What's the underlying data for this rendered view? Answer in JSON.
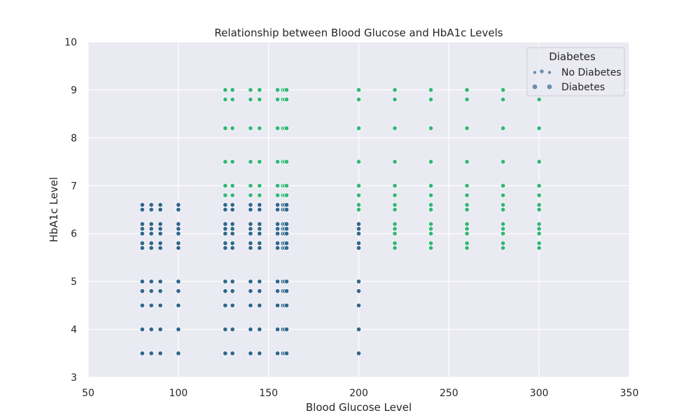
{
  "chart_data": {
    "type": "scatter",
    "title": "Relationship between Blood Glucose and HbA1c Levels",
    "xlabel": "Blood Glucose Level",
    "ylabel": "HbA1c Level",
    "xlim": [
      50,
      350
    ],
    "ylim": [
      3,
      10
    ],
    "xticks": [
      50,
      100,
      150,
      200,
      250,
      300,
      350
    ],
    "yticks": [
      3,
      4,
      5,
      6,
      7,
      8,
      9,
      10
    ],
    "grid": true,
    "legend": {
      "title": "Diabetes",
      "placement": "top-right",
      "entries": [
        {
          "label": "No Diabetes",
          "color": "#31688e"
        },
        {
          "label": "Diabetes",
          "color": "#35b779"
        }
      ]
    },
    "series": [
      {
        "name": "No Diabetes",
        "color": "#31688e",
        "points": [
          [
            80,
            3.5
          ],
          [
            80,
            4.0
          ],
          [
            80,
            4.5
          ],
          [
            80,
            4.8
          ],
          [
            80,
            5.0
          ],
          [
            80,
            5.7
          ],
          [
            80,
            5.8
          ],
          [
            80,
            6.0
          ],
          [
            80,
            6.1
          ],
          [
            80,
            6.2
          ],
          [
            80,
            6.5
          ],
          [
            80,
            6.6
          ],
          [
            85,
            3.5
          ],
          [
            85,
            4.0
          ],
          [
            85,
            4.5
          ],
          [
            85,
            4.8
          ],
          [
            85,
            5.0
          ],
          [
            85,
            5.7
          ],
          [
            85,
            5.8
          ],
          [
            85,
            6.0
          ],
          [
            85,
            6.1
          ],
          [
            85,
            6.2
          ],
          [
            85,
            6.5
          ],
          [
            85,
            6.6
          ],
          [
            90,
            3.5
          ],
          [
            90,
            4.0
          ],
          [
            90,
            4.5
          ],
          [
            90,
            4.8
          ],
          [
            90,
            5.0
          ],
          [
            90,
            5.7
          ],
          [
            90,
            5.8
          ],
          [
            90,
            6.0
          ],
          [
            90,
            6.1
          ],
          [
            90,
            6.2
          ],
          [
            90,
            6.5
          ],
          [
            90,
            6.6
          ],
          [
            100,
            3.5
          ],
          [
            100,
            4.0
          ],
          [
            100,
            4.5
          ],
          [
            100,
            4.8
          ],
          [
            100,
            5.0
          ],
          [
            100,
            5.7
          ],
          [
            100,
            5.8
          ],
          [
            100,
            6.0
          ],
          [
            100,
            6.1
          ],
          [
            100,
            6.2
          ],
          [
            100,
            6.5
          ],
          [
            100,
            6.6
          ],
          [
            126,
            3.5
          ],
          [
            126,
            4.0
          ],
          [
            126,
            4.5
          ],
          [
            126,
            4.8
          ],
          [
            126,
            5.0
          ],
          [
            126,
            5.7
          ],
          [
            126,
            5.8
          ],
          [
            126,
            6.0
          ],
          [
            126,
            6.1
          ],
          [
            126,
            6.2
          ],
          [
            126,
            6.5
          ],
          [
            126,
            6.6
          ],
          [
            130,
            3.5
          ],
          [
            130,
            4.0
          ],
          [
            130,
            4.5
          ],
          [
            130,
            4.8
          ],
          [
            130,
            5.0
          ],
          [
            130,
            5.7
          ],
          [
            130,
            5.8
          ],
          [
            130,
            6.0
          ],
          [
            130,
            6.1
          ],
          [
            130,
            6.2
          ],
          [
            130,
            6.5
          ],
          [
            130,
            6.6
          ],
          [
            140,
            3.5
          ],
          [
            140,
            4.0
          ],
          [
            140,
            4.5
          ],
          [
            140,
            4.8
          ],
          [
            140,
            5.0
          ],
          [
            140,
            5.7
          ],
          [
            140,
            5.8
          ],
          [
            140,
            6.0
          ],
          [
            140,
            6.1
          ],
          [
            140,
            6.2
          ],
          [
            140,
            6.5
          ],
          [
            140,
            6.6
          ],
          [
            145,
            3.5
          ],
          [
            145,
            4.0
          ],
          [
            145,
            4.5
          ],
          [
            145,
            4.8
          ],
          [
            145,
            5.0
          ],
          [
            145,
            5.7
          ],
          [
            145,
            5.8
          ],
          [
            145,
            6.0
          ],
          [
            145,
            6.1
          ],
          [
            145,
            6.2
          ],
          [
            145,
            6.5
          ],
          [
            145,
            6.6
          ],
          [
            155,
            3.5
          ],
          [
            155,
            4.0
          ],
          [
            155,
            4.5
          ],
          [
            155,
            4.8
          ],
          [
            155,
            5.0
          ],
          [
            155,
            5.7
          ],
          [
            155,
            5.8
          ],
          [
            155,
            6.0
          ],
          [
            155,
            6.1
          ],
          [
            155,
            6.2
          ],
          [
            155,
            6.5
          ],
          [
            155,
            6.6
          ],
          [
            158,
            3.5
          ],
          [
            158,
            4.0
          ],
          [
            158,
            4.5
          ],
          [
            158,
            4.8
          ],
          [
            158,
            5.0
          ],
          [
            158,
            5.7
          ],
          [
            158,
            5.8
          ],
          [
            158,
            6.0
          ],
          [
            158,
            6.1
          ],
          [
            158,
            6.2
          ],
          [
            158,
            6.5
          ],
          [
            158,
            6.6
          ],
          [
            159,
            3.5
          ],
          [
            159,
            4.0
          ],
          [
            159,
            4.5
          ],
          [
            159,
            4.8
          ],
          [
            159,
            5.0
          ],
          [
            159,
            5.7
          ],
          [
            159,
            5.8
          ],
          [
            159,
            6.0
          ],
          [
            159,
            6.1
          ],
          [
            159,
            6.2
          ],
          [
            159,
            6.5
          ],
          [
            159,
            6.6
          ],
          [
            160,
            3.5
          ],
          [
            160,
            4.0
          ],
          [
            160,
            4.5
          ],
          [
            160,
            4.8
          ],
          [
            160,
            5.0
          ],
          [
            160,
            5.7
          ],
          [
            160,
            5.8
          ],
          [
            160,
            6.0
          ],
          [
            160,
            6.1
          ],
          [
            160,
            6.2
          ],
          [
            160,
            6.5
          ],
          [
            160,
            6.6
          ],
          [
            200,
            3.5
          ],
          [
            200,
            4.0
          ],
          [
            200,
            4.5
          ],
          [
            200,
            4.8
          ],
          [
            200,
            5.0
          ],
          [
            200,
            5.7
          ],
          [
            200,
            5.8
          ],
          [
            200,
            6.0
          ],
          [
            200,
            6.1
          ],
          [
            200,
            6.2
          ],
          [
            200,
            6.5
          ],
          [
            200,
            6.6
          ]
        ]
      },
      {
        "name": "Diabetes",
        "color": "#35b779",
        "points": [
          [
            126,
            6.8
          ],
          [
            126,
            7.0
          ],
          [
            126,
            7.5
          ],
          [
            126,
            8.2
          ],
          [
            126,
            8.8
          ],
          [
            126,
            9.0
          ],
          [
            130,
            6.8
          ],
          [
            130,
            7.0
          ],
          [
            130,
            7.5
          ],
          [
            130,
            8.2
          ],
          [
            130,
            8.8
          ],
          [
            130,
            9.0
          ],
          [
            140,
            6.8
          ],
          [
            140,
            7.0
          ],
          [
            140,
            7.5
          ],
          [
            140,
            8.2
          ],
          [
            140,
            8.8
          ],
          [
            140,
            9.0
          ],
          [
            145,
            6.8
          ],
          [
            145,
            7.0
          ],
          [
            145,
            7.5
          ],
          [
            145,
            8.2
          ],
          [
            145,
            8.8
          ],
          [
            145,
            9.0
          ],
          [
            155,
            6.8
          ],
          [
            155,
            7.0
          ],
          [
            155,
            7.5
          ],
          [
            155,
            8.2
          ],
          [
            155,
            8.8
          ],
          [
            155,
            9.0
          ],
          [
            158,
            6.8
          ],
          [
            158,
            7.0
          ],
          [
            158,
            7.5
          ],
          [
            158,
            8.2
          ],
          [
            158,
            8.8
          ],
          [
            158,
            9.0
          ],
          [
            159,
            6.8
          ],
          [
            159,
            7.0
          ],
          [
            159,
            7.5
          ],
          [
            159,
            8.2
          ],
          [
            159,
            8.8
          ],
          [
            159,
            9.0
          ],
          [
            160,
            6.8
          ],
          [
            160,
            7.0
          ],
          [
            160,
            7.5
          ],
          [
            160,
            8.2
          ],
          [
            160,
            8.8
          ],
          [
            160,
            9.0
          ],
          [
            200,
            6.5
          ],
          [
            200,
            6.6
          ],
          [
            200,
            6.8
          ],
          [
            200,
            7.0
          ],
          [
            200,
            7.5
          ],
          [
            200,
            8.2
          ],
          [
            200,
            8.8
          ],
          [
            200,
            9.0
          ],
          [
            220,
            5.7
          ],
          [
            220,
            5.8
          ],
          [
            220,
            6.0
          ],
          [
            220,
            6.1
          ],
          [
            220,
            6.2
          ],
          [
            220,
            6.5
          ],
          [
            220,
            6.6
          ],
          [
            220,
            6.8
          ],
          [
            220,
            7.0
          ],
          [
            220,
            7.5
          ],
          [
            220,
            8.2
          ],
          [
            220,
            8.8
          ],
          [
            220,
            9.0
          ],
          [
            240,
            5.7
          ],
          [
            240,
            5.8
          ],
          [
            240,
            6.0
          ],
          [
            240,
            6.1
          ],
          [
            240,
            6.2
          ],
          [
            240,
            6.5
          ],
          [
            240,
            6.6
          ],
          [
            240,
            6.8
          ],
          [
            240,
            7.0
          ],
          [
            240,
            7.5
          ],
          [
            240,
            8.2
          ],
          [
            240,
            8.8
          ],
          [
            240,
            9.0
          ],
          [
            260,
            5.7
          ],
          [
            260,
            5.8
          ],
          [
            260,
            6.0
          ],
          [
            260,
            6.1
          ],
          [
            260,
            6.2
          ],
          [
            260,
            6.5
          ],
          [
            260,
            6.6
          ],
          [
            260,
            6.8
          ],
          [
            260,
            7.0
          ],
          [
            260,
            7.5
          ],
          [
            260,
            8.2
          ],
          [
            260,
            8.8
          ],
          [
            260,
            9.0
          ],
          [
            280,
            5.7
          ],
          [
            280,
            5.8
          ],
          [
            280,
            6.0
          ],
          [
            280,
            6.1
          ],
          [
            280,
            6.2
          ],
          [
            280,
            6.5
          ],
          [
            280,
            6.6
          ],
          [
            280,
            6.8
          ],
          [
            280,
            7.0
          ],
          [
            280,
            7.5
          ],
          [
            280,
            8.2
          ],
          [
            280,
            8.8
          ],
          [
            280,
            9.0
          ],
          [
            300,
            5.7
          ],
          [
            300,
            5.8
          ],
          [
            300,
            6.0
          ],
          [
            300,
            6.1
          ],
          [
            300,
            6.2
          ],
          [
            300,
            6.5
          ],
          [
            300,
            6.6
          ],
          [
            300,
            6.8
          ],
          [
            300,
            7.0
          ],
          [
            300,
            7.5
          ],
          [
            300,
            8.2
          ],
          [
            300,
            8.8
          ]
        ]
      }
    ]
  },
  "colors": {
    "plot_background": "#eaeaf2",
    "grid": "#ffffff"
  }
}
